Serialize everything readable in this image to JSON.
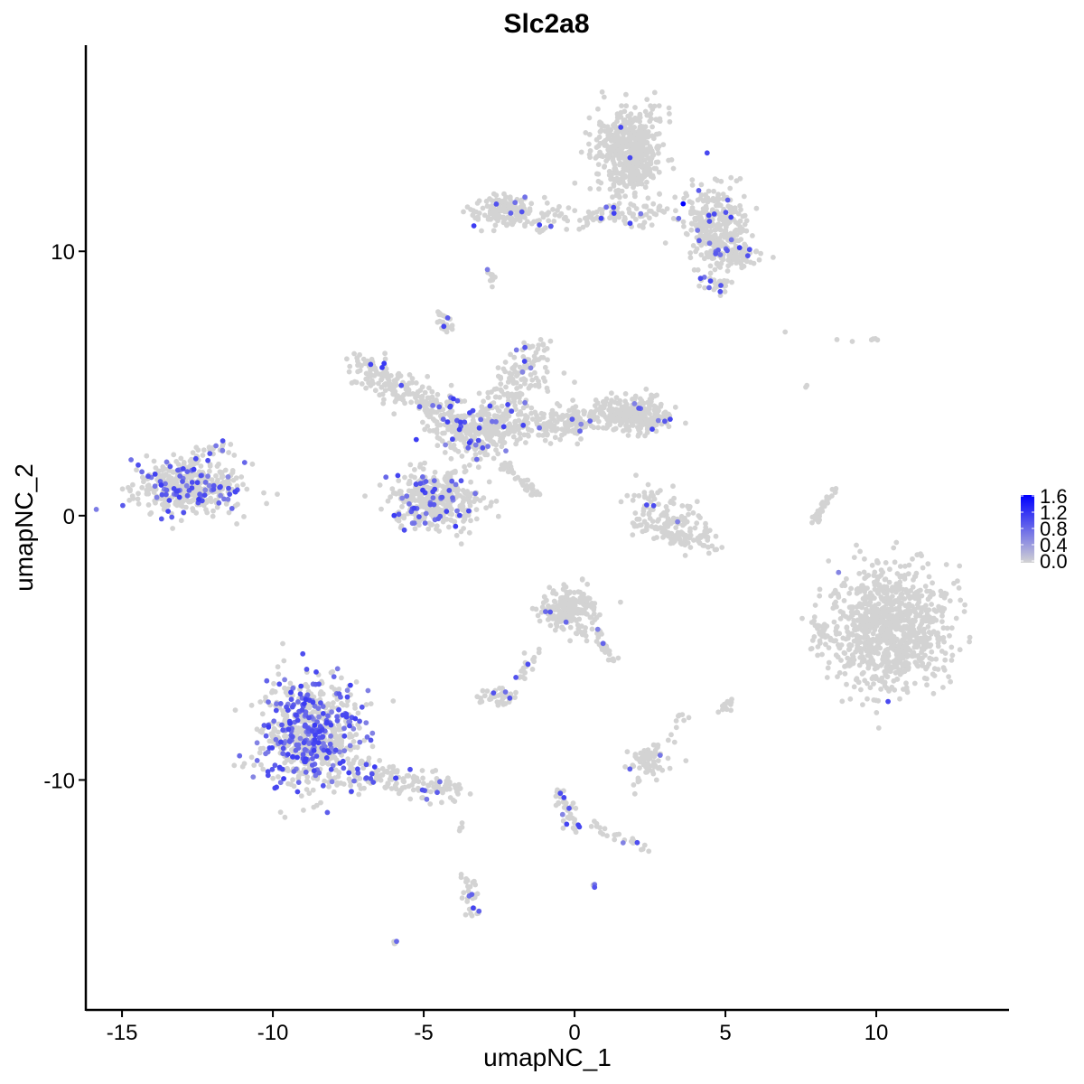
{
  "chart_data": {
    "type": "scatter",
    "title": "Slc2a8",
    "xlabel": "umapNC_1",
    "ylabel": "umapNC_2",
    "xlim": [
      -16.2,
      14.4
    ],
    "ylim": [
      -18.7,
      17.8
    ],
    "x_ticks": [
      -15,
      -10,
      -5,
      0,
      5,
      10
    ],
    "x_tick_labels": [
      "-15",
      "-10",
      "-5",
      "0",
      "5",
      "10"
    ],
    "y_ticks": [
      -10,
      0,
      10
    ],
    "y_tick_labels": [
      "-10",
      "0",
      "10"
    ],
    "grid": false,
    "color_scale": {
      "low": "#d3d3d3",
      "high": "#0000ff",
      "min": 0.0,
      "max": 1.65,
      "ticks": [
        0.0,
        0.4,
        0.8,
        1.2,
        1.6
      ],
      "tick_labels": [
        "0.0",
        "0.4",
        "0.8",
        "1.2",
        "1.6"
      ]
    },
    "legend_position": "right",
    "clusters": [
      {
        "kind": "blob",
        "center": [
          -12.8,
          1.0
        ],
        "sd": [
          1.0,
          0.55
        ],
        "n": 380,
        "expressing_fraction": 0.18
      },
      {
        "kind": "segment",
        "from": [
          -13.5,
          1.6
        ],
        "to": [
          -11.5,
          2.6
        ],
        "sd": 0.2,
        "n": 40,
        "expressing_fraction": 0.1
      },
      {
        "kind": "blob",
        "center": [
          -8.7,
          -8.3
        ],
        "sd": [
          0.85,
          1.15
        ],
        "n": 750,
        "expressing_fraction": 0.3
      },
      {
        "kind": "segment",
        "from": [
          -7.5,
          -9.6
        ],
        "to": [
          -3.8,
          -10.5
        ],
        "sd": 0.25,
        "n": 160,
        "expressing_fraction": 0.08
      },
      {
        "kind": "segment",
        "from": [
          -7.3,
          5.8
        ],
        "to": [
          -4.5,
          4.0
        ],
        "sd": 0.3,
        "n": 180,
        "expressing_fraction": 0.03
      },
      {
        "kind": "segment",
        "from": [
          -4.5,
          4.0
        ],
        "to": [
          -3.2,
          2.5
        ],
        "sd": 0.45,
        "n": 200,
        "expressing_fraction": 0.08
      },
      {
        "kind": "blob",
        "center": [
          -4.6,
          0.6
        ],
        "sd": [
          0.85,
          0.6
        ],
        "n": 380,
        "expressing_fraction": 0.12
      },
      {
        "kind": "segment",
        "from": [
          -3.2,
          2.8
        ],
        "to": [
          -1.2,
          6.3
        ],
        "sd": 0.35,
        "n": 200,
        "expressing_fraction": 0.04
      },
      {
        "kind": "segment",
        "from": [
          -3.0,
          3.3
        ],
        "to": [
          2.6,
          3.9
        ],
        "sd": 0.35,
        "n": 350,
        "expressing_fraction": 0.03
      },
      {
        "kind": "blob",
        "center": [
          2.1,
          3.8
        ],
        "sd": [
          0.6,
          0.4
        ],
        "n": 150,
        "expressing_fraction": 0.03
      },
      {
        "kind": "segment",
        "from": [
          -4.1,
          6.9
        ],
        "to": [
          -4.4,
          7.6
        ],
        "sd": 0.12,
        "n": 20,
        "expressing_fraction": 0.1
      },
      {
        "kind": "segment",
        "from": [
          -2.4,
          2.0
        ],
        "to": [
          -1.1,
          0.7
        ],
        "sd": 0.08,
        "n": 45,
        "expressing_fraction": 0.0
      },
      {
        "kind": "blob",
        "center": [
          1.8,
          13.8
        ],
        "sd": [
          0.6,
          0.9
        ],
        "n": 550,
        "expressing_fraction": 0.01
      },
      {
        "kind": "blob",
        "center": [
          -2.3,
          11.5
        ],
        "sd": [
          0.55,
          0.3
        ],
        "n": 160,
        "expressing_fraction": 0.02
      },
      {
        "kind": "segment",
        "from": [
          -1.5,
          11.2
        ],
        "to": [
          3.0,
          11.5
        ],
        "sd": 0.25,
        "n": 120,
        "expressing_fraction": 0.05
      },
      {
        "kind": "blob",
        "center": [
          4.7,
          11.0
        ],
        "sd": [
          0.6,
          0.8
        ],
        "n": 280,
        "expressing_fraction": 0.06
      },
      {
        "kind": "blob",
        "center": [
          5.4,
          9.8
        ],
        "sd": [
          0.5,
          0.3
        ],
        "n": 80,
        "expressing_fraction": 0.04
      },
      {
        "kind": "blob",
        "center": [
          4.7,
          8.8
        ],
        "sd": [
          0.3,
          0.25
        ],
        "n": 30,
        "expressing_fraction": 0.2
      },
      {
        "kind": "segment",
        "from": [
          -2.8,
          9.4
        ],
        "to": [
          -2.7,
          8.6
        ],
        "sd": 0.1,
        "n": 10,
        "expressing_fraction": 0.1
      },
      {
        "kind": "segment",
        "from": [
          2.1,
          0.6
        ],
        "to": [
          4.5,
          -0.9
        ],
        "sd": 0.35,
        "n": 120,
        "expressing_fraction": 0.03
      },
      {
        "kind": "segment",
        "from": [
          1.9,
          -0.2
        ],
        "to": [
          4.0,
          -1.1
        ],
        "sd": 0.2,
        "n": 60,
        "expressing_fraction": 0.0
      },
      {
        "kind": "blob",
        "center": [
          10.4,
          -4.3
        ],
        "sd": [
          1.05,
          1.25
        ],
        "n": 950,
        "expressing_fraction": 0.006
      },
      {
        "kind": "blob",
        "center": [
          8.1,
          -4.4
        ],
        "sd": [
          0.2,
          0.4
        ],
        "n": 30,
        "expressing_fraction": 0.0
      },
      {
        "kind": "segment",
        "from": [
          8.7,
          1.1
        ],
        "to": [
          7.9,
          -0.3
        ],
        "sd": 0.08,
        "n": 30,
        "expressing_fraction": 0.0
      },
      {
        "kind": "blob",
        "center": [
          -0.2,
          -3.6
        ],
        "sd": [
          0.5,
          0.45
        ],
        "n": 200,
        "expressing_fraction": 0.01
      },
      {
        "kind": "segment",
        "from": [
          0.5,
          -4.2
        ],
        "to": [
          1.3,
          -5.5
        ],
        "sd": 0.15,
        "n": 30,
        "expressing_fraction": 0.05
      },
      {
        "kind": "segment",
        "from": [
          -1.2,
          -5.0
        ],
        "to": [
          -1.8,
          -6.2
        ],
        "sd": 0.12,
        "n": 20,
        "expressing_fraction": 0.1
      },
      {
        "kind": "blob",
        "center": [
          -2.5,
          -6.9
        ],
        "sd": [
          0.35,
          0.2
        ],
        "n": 45,
        "expressing_fraction": 0.02
      },
      {
        "kind": "blob",
        "center": [
          2.4,
          -9.3
        ],
        "sd": [
          0.4,
          0.4
        ],
        "n": 70,
        "expressing_fraction": 0.06
      },
      {
        "kind": "segment",
        "from": [
          -0.5,
          -10.3
        ],
        "to": [
          0.0,
          -12.0
        ],
        "sd": 0.15,
        "n": 40,
        "expressing_fraction": 0.1
      },
      {
        "kind": "segment",
        "from": [
          0.4,
          -11.7
        ],
        "to": [
          2.4,
          -12.6
        ],
        "sd": 0.12,
        "n": 25,
        "expressing_fraction": 0.05
      },
      {
        "kind": "segment",
        "from": [
          -3.6,
          -13.5
        ],
        "to": [
          -3.3,
          -15.3
        ],
        "sd": 0.15,
        "n": 30,
        "expressing_fraction": 0.15
      },
      {
        "kind": "blob",
        "center": [
          5.1,
          -7.2
        ],
        "sd": [
          0.12,
          0.15
        ],
        "n": 12,
        "expressing_fraction": 0.1
      },
      {
        "kind": "segment",
        "from": [
          3.6,
          -7.5
        ],
        "to": [
          3.2,
          -8.6
        ],
        "sd": 0.12,
        "n": 10,
        "expressing_fraction": 0.0
      },
      {
        "kind": "segment",
        "from": [
          -6.0,
          -16.2
        ],
        "to": [
          -5.9,
          -16.1
        ],
        "sd": 0.05,
        "n": 4,
        "expressing_fraction": 0.3
      },
      {
        "kind": "segment",
        "from": [
          -3.8,
          -11.5
        ],
        "to": [
          -3.8,
          -12.0
        ],
        "sd": 0.05,
        "n": 4,
        "expressing_fraction": 0.0
      },
      {
        "kind": "segment",
        "from": [
          0.6,
          -13.9
        ],
        "to": [
          0.7,
          -14.0
        ],
        "sd": 0.05,
        "n": 3,
        "expressing_fraction": 0.5
      },
      {
        "kind": "segment",
        "from": [
          7.0,
          6.9
        ],
        "to": [
          7.0,
          6.9
        ],
        "sd": 0.03,
        "n": 1,
        "expressing_fraction": 0.0
      },
      {
        "kind": "segment",
        "from": [
          9.8,
          6.9
        ],
        "to": [
          10.0,
          6.6
        ],
        "sd": 0.08,
        "n": 4,
        "expressing_fraction": 0.0
      },
      {
        "kind": "segment",
        "from": [
          8.5,
          6.7
        ],
        "to": [
          9.3,
          6.6
        ],
        "sd": 0.05,
        "n": 2,
        "expressing_fraction": 0.0
      },
      {
        "kind": "segment",
        "from": [
          7.6,
          4.9
        ],
        "to": [
          7.7,
          4.7
        ],
        "sd": 0.05,
        "n": 2,
        "expressing_fraction": 0.0
      }
    ],
    "highlight_points": [
      {
        "x": 3.6,
        "y": 11.8,
        "value": 1.65
      }
    ]
  }
}
